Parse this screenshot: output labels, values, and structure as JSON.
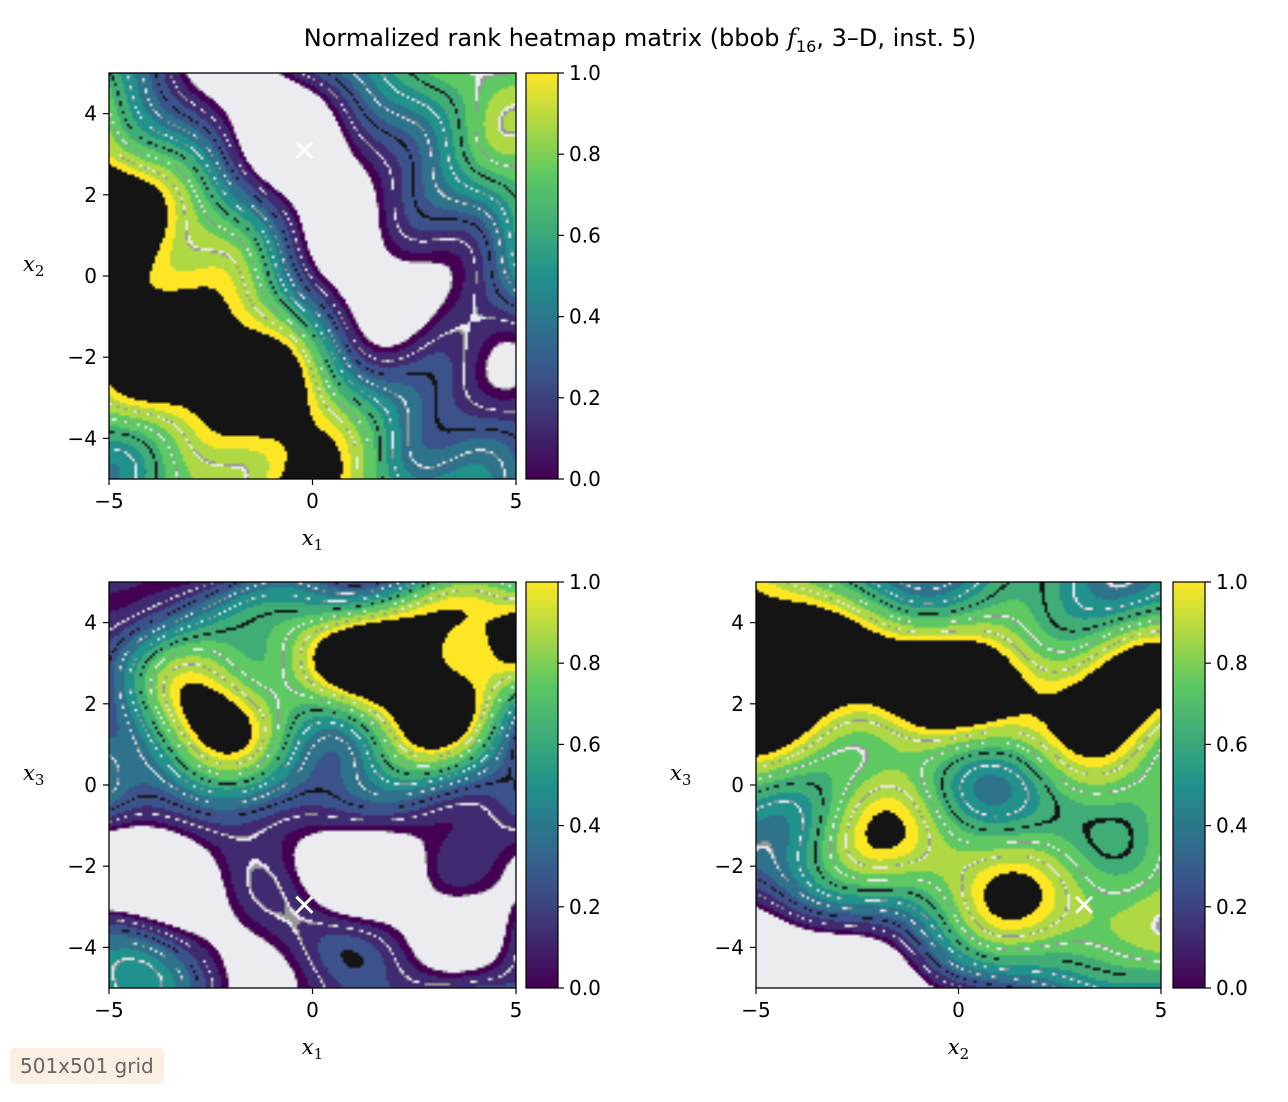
{
  "figure": {
    "title_main": "Normalized rank heatmap matrix (bbob ",
    "title_f": "f",
    "title_sub": "16",
    "title_rest": ", 3–D, inst. 5)",
    "grid_note": "501x501 grid"
  },
  "colormap": {
    "name": "viridis",
    "stops": [
      "#440154",
      "#3b528b",
      "#21918c",
      "#5ec962",
      "#fde725"
    ],
    "contour_line_colors": [
      "#ffffff",
      "#9e9e9e",
      "#000000"
    ]
  },
  "chart_data": [
    {
      "type": "heatmap",
      "panel": "x1-x2",
      "xlabel": "x",
      "xlabel_sub": "1",
      "ylabel": "x",
      "ylabel_sub": "2",
      "xlim": [
        -5,
        5
      ],
      "ylim": [
        -5,
        5
      ],
      "xticks": [
        -5,
        0,
        5
      ],
      "yticks": [
        -4,
        -2,
        0,
        2,
        4
      ],
      "optimum_marker": [
        -0.2,
        3.1
      ],
      "value_range": [
        0,
        1
      ],
      "colorbar": {
        "min": 0,
        "max": 1,
        "ticks": [
          0.0,
          0.2,
          0.4,
          0.6,
          0.8,
          1.0
        ]
      }
    },
    {
      "type": "heatmap",
      "panel": "x1-x3",
      "xlabel": "x",
      "xlabel_sub": "1",
      "ylabel": "x",
      "ylabel_sub": "3",
      "xlim": [
        -5,
        5
      ],
      "ylim": [
        -5,
        5
      ],
      "xticks": [
        -5,
        0,
        5
      ],
      "yticks": [
        -4,
        -2,
        0,
        2,
        4
      ],
      "optimum_marker": [
        -0.2,
        -2.95
      ],
      "value_range": [
        0,
        1
      ],
      "colorbar": {
        "min": 0,
        "max": 1,
        "ticks": [
          0.0,
          0.2,
          0.4,
          0.6,
          0.8,
          1.0
        ]
      }
    },
    {
      "type": "heatmap",
      "panel": "x2-x3",
      "xlabel": "x",
      "xlabel_sub": "2",
      "ylabel": "x",
      "ylabel_sub": "3",
      "xlim": [
        -5,
        5
      ],
      "ylim": [
        -5,
        5
      ],
      "xticks": [
        -5,
        0,
        5
      ],
      "yticks": [
        -4,
        -2,
        0,
        2,
        4
      ],
      "optimum_marker": [
        3.1,
        -2.95
      ],
      "value_range": [
        0,
        1
      ],
      "colorbar": {
        "min": 0,
        "max": 1,
        "ticks": [
          0.0,
          0.2,
          0.4,
          0.6,
          0.8,
          1.0
        ]
      }
    }
  ]
}
